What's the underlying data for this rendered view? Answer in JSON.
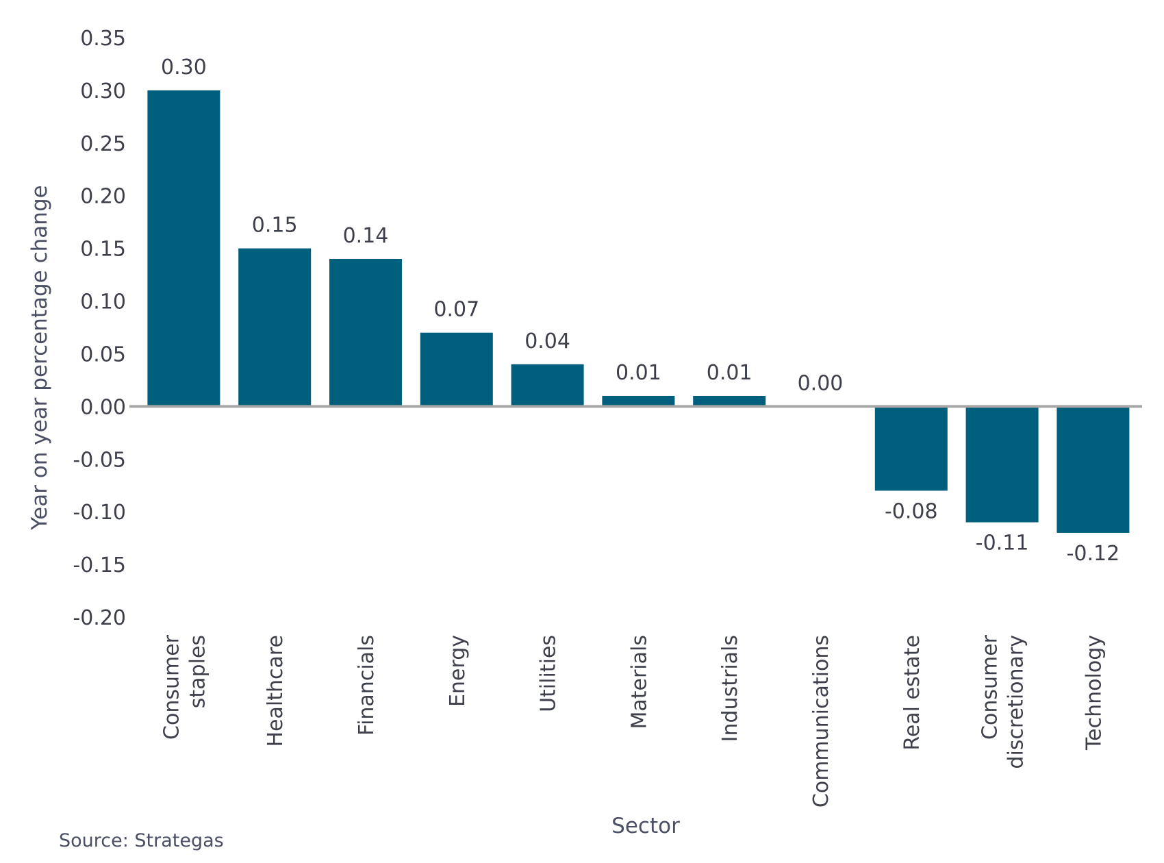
{
  "chart_data": {
    "type": "bar",
    "categories": [
      [
        "Consumer",
        "staples"
      ],
      [
        "Healthcare"
      ],
      [
        "Financials"
      ],
      [
        "Energy"
      ],
      [
        "Utilities"
      ],
      [
        "Materials"
      ],
      [
        "Industrials"
      ],
      [
        "Communications"
      ],
      [
        "Real estate"
      ],
      [
        "Consumer",
        "discretionary"
      ],
      [
        "Technology"
      ]
    ],
    "values": [
      0.3,
      0.15,
      0.14,
      0.07,
      0.04,
      0.01,
      0.01,
      0.0,
      -0.08,
      -0.11,
      -0.12
    ],
    "value_labels": [
      "0.30",
      "0.15",
      "0.14",
      "0.07",
      "0.04",
      "0.01",
      "0.01",
      "0.00",
      "-0.08",
      "-0.11",
      "-0.12"
    ],
    "xlabel": "Sector",
    "ylabel": "Year on year percentage change",
    "ylim": [
      -0.2,
      0.35
    ],
    "yticks": [
      "0.35",
      "0.30",
      "0.25",
      "0.20",
      "0.15",
      "0.10",
      "0.05",
      "0.00",
      "-0.05",
      "-0.10",
      "-0.15",
      "-0.20"
    ],
    "ytick_values": [
      0.35,
      0.3,
      0.25,
      0.2,
      0.15,
      0.1,
      0.05,
      0.0,
      -0.05,
      -0.1,
      -0.15,
      -0.2
    ],
    "grid": false,
    "legend": "none",
    "colors": {
      "bar": "#005f7d",
      "zero_line": "#a6a6a6",
      "text": "#3d3f4a"
    }
  },
  "source": "Source: Strategas"
}
